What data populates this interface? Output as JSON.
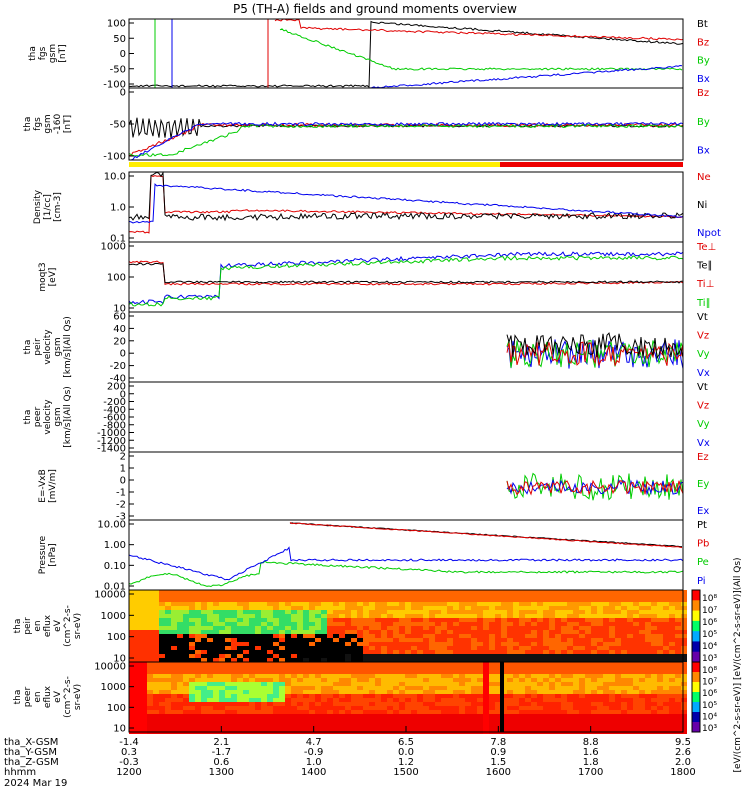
{
  "title": "P5 (TH-A) fields and ground moments overview",
  "time_axis": {
    "ticks": [
      "1200",
      "1300",
      "1400",
      "1500",
      "1600",
      "1700",
      "1800"
    ],
    "rows": [
      {
        "label": "tha_X-GSM",
        "values": [
          "-1.4",
          "2.1",
          "4.7",
          "6.5",
          "7.8",
          "8.8",
          "9.5"
        ]
      },
      {
        "label": "tha_Y-GSM",
        "values": [
          "0.3",
          "-1.7",
          "-0.9",
          "0.0",
          "0.9",
          "1.6",
          "2.6"
        ]
      },
      {
        "label": "tha_Z-GSM",
        "values": [
          "-0.3",
          "0.6",
          "1.0",
          "1.2",
          "1.5",
          "1.8",
          "2.0"
        ]
      },
      {
        "label": "hhmm",
        "values": [
          "1200",
          "1300",
          "1400",
          "1500",
          "1600",
          "1700",
          "1800"
        ]
      }
    ],
    "date": "2024 Mar 19"
  },
  "colors": {
    "black": "#000000",
    "red": "#e00000",
    "green": "#00cc00",
    "blue": "#0000ee"
  },
  "chart_data": [
    {
      "type": "line",
      "ylabel": [
        "tha",
        "fgs",
        "gsm",
        "[nT]"
      ],
      "ylim": [
        -100,
        100
      ],
      "ticks": [
        "100",
        "50",
        "0",
        "-50",
        "-100"
      ],
      "legend": [
        {
          "name": "Bt",
          "color": "#000000"
        },
        {
          "name": "Bz",
          "color": "#e00000"
        },
        {
          "name": "By",
          "color": "#00cc00"
        },
        {
          "name": "Bx",
          "color": "#0000ee"
        }
      ]
    },
    {
      "type": "line",
      "ylabel": [
        "tha",
        "fgs",
        "gsm",
        "-160",
        "[nT]"
      ],
      "ylim": [
        -120,
        40
      ],
      "ticks": [
        "0",
        "-50",
        "-100"
      ],
      "legend": [
        {
          "name": "Bz",
          "color": "#e00000"
        },
        {
          "name": "By",
          "color": "#00cc00"
        },
        {
          "name": "Bx",
          "color": "#0000ee"
        }
      ]
    },
    {
      "type": "line",
      "ylabel": [
        "Density",
        "[1/cc]",
        "[cm-3]"
      ],
      "scale": "log",
      "ticks": [
        "10.0",
        "1.0",
        "0.1"
      ],
      "legend": [
        {
          "name": "Ne",
          "color": "#e00000"
        },
        {
          "name": "Ni",
          "color": "#000000"
        },
        {
          "name": "Npot",
          "color": "#0000ee"
        }
      ]
    },
    {
      "type": "line",
      "ylabel": [
        "moqt3",
        "[eV]"
      ],
      "scale": "log",
      "ticks": [
        "1000",
        "100",
        "10"
      ],
      "legend": [
        {
          "name": "Te⊥",
          "color": "#e00000"
        },
        {
          "name": "Te∥",
          "color": "#000000"
        },
        {
          "name": "Ti⊥",
          "color": "#e00000"
        },
        {
          "name": "Ti∥",
          "color": "#00cc00"
        }
      ]
    },
    {
      "type": "line",
      "ylabel": [
        "tha",
        "peir",
        "velocity",
        "gsm",
        "[km/s](All Qs)"
      ],
      "ylim": [
        -50,
        60
      ],
      "ticks": [
        "60",
        "40",
        "20",
        "0",
        "-20",
        "-40"
      ],
      "legend": [
        {
          "name": "Vt",
          "color": "#000000"
        },
        {
          "name": "Vz",
          "color": "#e00000"
        },
        {
          "name": "Vy",
          "color": "#00cc00"
        },
        {
          "name": "Vx",
          "color": "#0000ee"
        }
      ]
    },
    {
      "type": "line",
      "ylabel": [
        "tha",
        "peer",
        "velocity",
        "gsm",
        "[km/s](All Qs)"
      ],
      "ylim": [
        -1400,
        200
      ],
      "ticks": [
        "200",
        "0",
        "-200",
        "-400",
        "-600",
        "-800",
        "-1000",
        "-1200",
        "-1400"
      ],
      "legend": [
        {
          "name": "Vt",
          "color": "#000000"
        },
        {
          "name": "Vz",
          "color": "#e00000"
        },
        {
          "name": "Vy",
          "color": "#00cc00"
        },
        {
          "name": "Vx",
          "color": "#0000ee"
        }
      ]
    },
    {
      "type": "line",
      "ylabel": [
        "E=-VxB",
        "[mV/m]"
      ],
      "ylim": [
        -3,
        2
      ],
      "ticks": [
        "2",
        "1",
        "0",
        "-1",
        "-2",
        "-3"
      ],
      "legend": [
        {
          "name": "Ez",
          "color": "#e00000"
        },
        {
          "name": "Ey",
          "color": "#00cc00"
        },
        {
          "name": "Ex",
          "color": "#0000ee"
        }
      ]
    },
    {
      "type": "line",
      "ylabel": [
        "Pressure",
        "[nPa]"
      ],
      "scale": "log",
      "ticks": [
        "10.00",
        "1.00",
        "0.10",
        "0.01"
      ],
      "legend": [
        {
          "name": "Pt",
          "color": "#000000"
        },
        {
          "name": "Pb",
          "color": "#e00000"
        },
        {
          "name": "Pe",
          "color": "#00cc00"
        },
        {
          "name": "Pi",
          "color": "#0000ee"
        }
      ]
    },
    {
      "type": "heatmap",
      "ylabel": [
        "tha",
        "peir",
        "en",
        "eflux",
        "eV",
        "(cm^2-s-",
        "sr-eV)"
      ],
      "scale": "log",
      "ticks": [
        "10000",
        "1000",
        "100",
        "10"
      ]
    },
    {
      "type": "heatmap",
      "ylabel": [
        "tha",
        "peer",
        "en",
        "eflux",
        "eV",
        "(cm^2-s-",
        "sr-eV)"
      ],
      "scale": "log",
      "ticks": [
        "10000",
        "1000",
        "100",
        "10"
      ]
    }
  ],
  "colorbar_ion": {
    "ticks": [
      "10⁸",
      "10⁷",
      "10⁶",
      "10⁵",
      "10⁴",
      "10³"
    ]
  },
  "colorbar_ele": {
    "ticks": [
      "10⁸",
      "10⁷",
      "10⁶",
      "10⁵",
      "10⁴",
      "10³"
    ]
  },
  "colorbar_label": "[eV/(cm^2-s-sr-eV)] [eV/(cm^2-s-sr-eV)](All Qs)"
}
